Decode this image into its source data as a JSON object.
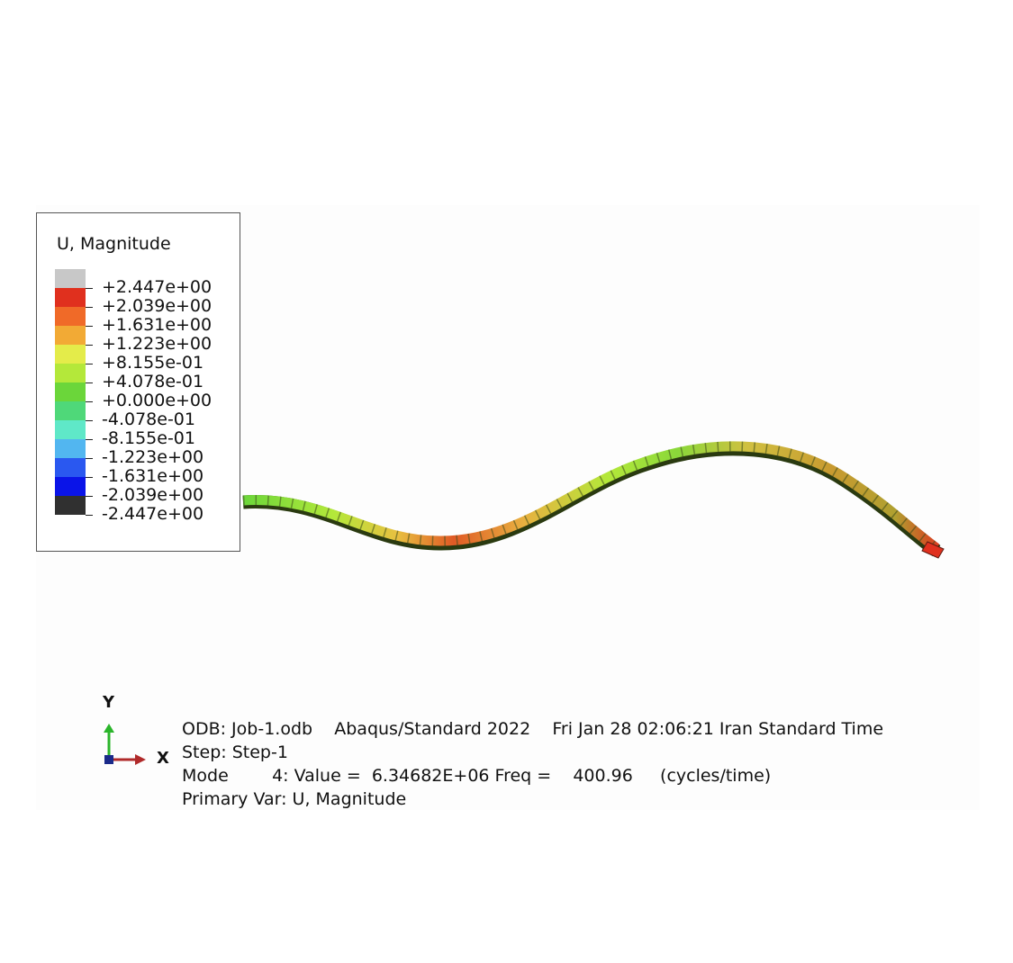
{
  "legend": {
    "title": "U, Magnitude",
    "swatch_colors": [
      "#c8c8c8",
      "#e0301e",
      "#f06a28",
      "#f2aa35",
      "#e4ec4a",
      "#b4e83a",
      "#6bd63a",
      "#4fd879",
      "#5fe8c8",
      "#52b6f0",
      "#2a58f0",
      "#0a14e8",
      "#303030"
    ],
    "labels": [
      "+2.447e+00",
      "+2.039e+00",
      "+1.631e+00",
      "+1.223e+00",
      "+8.155e-01",
      "+4.078e-01",
      "+0.000e+00",
      "-4.078e-01",
      "-8.155e-01",
      "-1.223e+00",
      "-1.631e+00",
      "-2.039e+00",
      "-2.447e+00"
    ]
  },
  "triad": {
    "y_label": "Y",
    "x_label": "X",
    "y_color": "#2bb52b",
    "x_color": "#b02a2a",
    "origin_color": "#1a2a8a"
  },
  "info": {
    "odb_line": "ODB: Job-1.odb    Abaqus/Standard 2022    Fri Jan 28 02:06:21 Iran Standard Time",
    "step_line": "Step: Step-1",
    "mode_line": "Mode        4: Value =  6.34682E+06 Freq =    400.96     (cycles/time)",
    "primary_var_line": "Primary Var: U, Magnitude"
  }
}
